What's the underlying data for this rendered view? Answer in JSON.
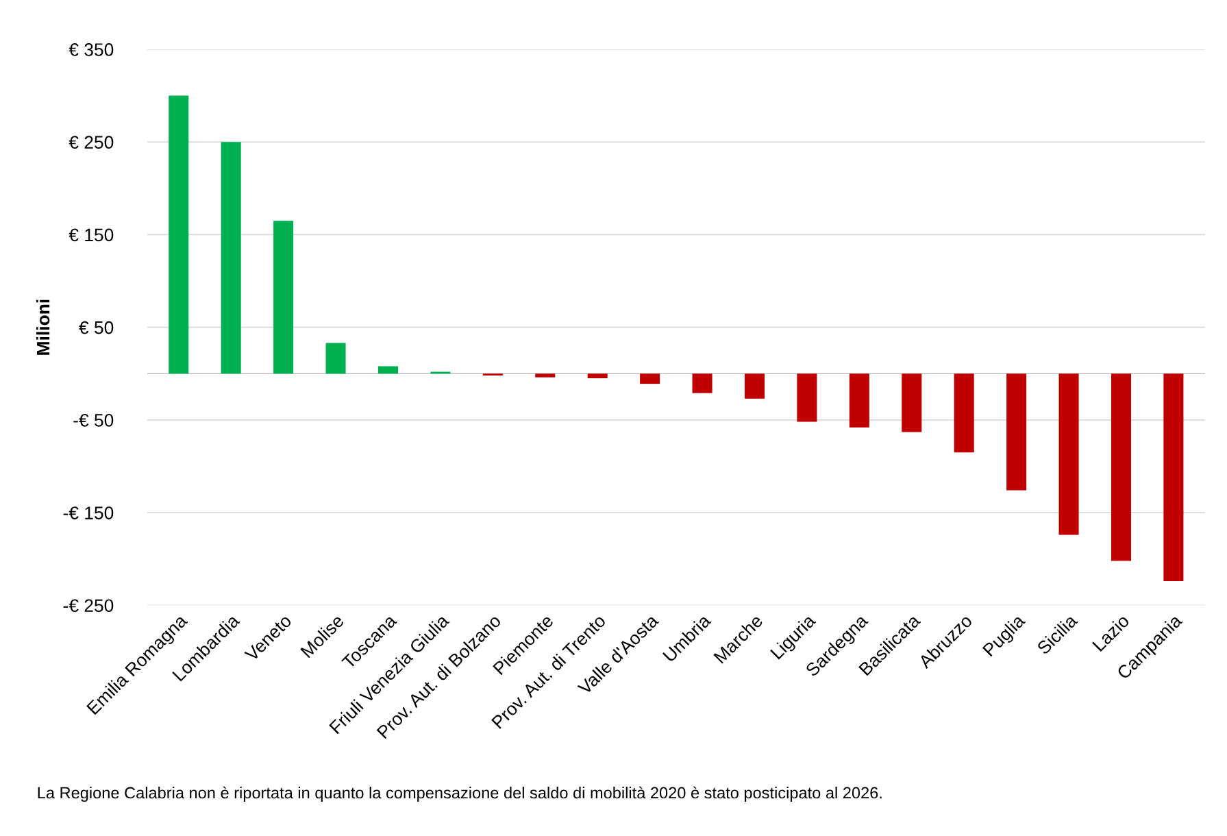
{
  "chart_data": {
    "type": "bar",
    "ylabel": "Milioni",
    "categories": [
      "Emilia Romagna",
      "Lombardia",
      "Veneto",
      "Molise",
      "Toscana",
      "Friuli Venezia Giulia",
      "Prov. Aut. di Bolzano",
      "Piemonte",
      "Prov. Aut. di Trento",
      "Valle d'Aosta",
      "Umbria",
      "Marche",
      "Liguria",
      "Sardegna",
      "Basilicata",
      "Abruzzo",
      "Puglia",
      "Sicilia",
      "Lazio",
      "Campania"
    ],
    "values": [
      300,
      250,
      165,
      33,
      8,
      2,
      -2,
      -4,
      -5,
      -11,
      -21,
      -27,
      -52,
      -58,
      -63,
      -85,
      -126,
      -174,
      -202,
      -224
    ],
    "colors": [
      "#00b050",
      "#00b050",
      "#00b050",
      "#00b050",
      "#00b050",
      "#00b050",
      "#c00000",
      "#c00000",
      "#c00000",
      "#c00000",
      "#c00000",
      "#c00000",
      "#c00000",
      "#c00000",
      "#c00000",
      "#c00000",
      "#c00000",
      "#c00000",
      "#c00000",
      "#c00000"
    ],
    "ylim": [
      -250,
      350
    ],
    "yticks": [
      {
        "value": 350,
        "label": "€ 350"
      },
      {
        "value": 250,
        "label": "€ 250"
      },
      {
        "value": 150,
        "label": "€ 150"
      },
      {
        "value": 50,
        "label": "€ 50"
      },
      {
        "value": -50,
        "label": "-€ 50"
      },
      {
        "value": -150,
        "label": "-€ 150"
      },
      {
        "value": -250,
        "label": "-€ 250"
      }
    ],
    "grid": "y",
    "legend": false,
    "annotations": [
      "La Regione Calabria non è riportata in quanto la compensazione del saldo di mobilità 2020 è stato posticipato al 2026."
    ]
  }
}
